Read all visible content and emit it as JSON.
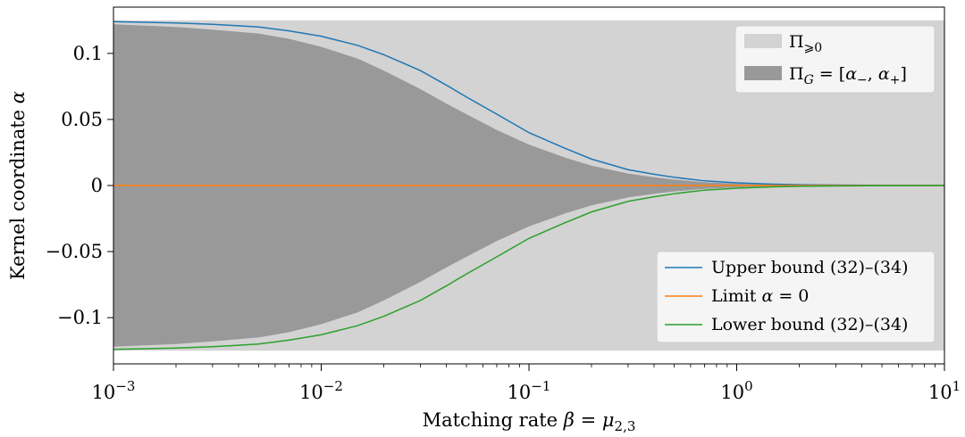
{
  "chart_data": {
    "type": "area",
    "xscale": "log",
    "xlim": [
      0.001,
      10
    ],
    "ylim": [
      -0.135,
      0.135
    ],
    "xlabel": "Matching rate β = μ2,3",
    "ylabel": "Kernel coordinate α",
    "x_ticks": [
      {
        "value": 0.001,
        "base": "10",
        "exp": "−3"
      },
      {
        "value": 0.01,
        "base": "10",
        "exp": "−2"
      },
      {
        "value": 0.1,
        "base": "10",
        "exp": "−1"
      },
      {
        "value": 1,
        "base": "10",
        "exp": "0"
      },
      {
        "value": 10,
        "base": "10",
        "exp": "1"
      }
    ],
    "y_ticks": [
      {
        "value": 0.1,
        "label": "0.1"
      },
      {
        "value": 0.05,
        "label": "0.05"
      },
      {
        "value": 0,
        "label": "0"
      },
      {
        "value": -0.05,
        "label": "−0.05"
      },
      {
        "value": -0.1,
        "label": "−0.1"
      }
    ],
    "x": [
      0.001,
      0.002,
      0.003,
      0.005,
      0.007,
      0.01,
      0.015,
      0.02,
      0.03,
      0.04,
      0.05,
      0.07,
      0.1,
      0.15,
      0.2,
      0.3,
      0.4,
      0.5,
      0.7,
      1,
      1.5,
      2,
      3,
      5,
      10
    ],
    "bands": [
      {
        "name": "Π≥0",
        "color": "#d3d3d3",
        "lower": -0.125,
        "upper": 0.125
      },
      {
        "name": "ΠG = [α−, α+]",
        "color": "#999999",
        "upper": [
          0.122,
          0.12,
          0.118,
          0.115,
          0.111,
          0.105,
          0.096,
          0.087,
          0.073,
          0.062,
          0.054,
          0.042,
          0.031,
          0.021,
          0.015,
          0.009,
          0.0062,
          0.0045,
          0.0025,
          0.0014,
          0.0007,
          0.0004,
          0.0002,
          0.0001,
          0.0
        ],
        "lower": [
          -0.122,
          -0.12,
          -0.118,
          -0.115,
          -0.111,
          -0.105,
          -0.096,
          -0.087,
          -0.073,
          -0.062,
          -0.054,
          -0.042,
          -0.031,
          -0.021,
          -0.015,
          -0.009,
          -0.0062,
          -0.0045,
          -0.0025,
          -0.0014,
          -0.0007,
          -0.0004,
          -0.0002,
          -0.0001,
          0.0
        ]
      }
    ],
    "series": [
      {
        "name": "Upper bound (32)–(34)",
        "color": "#1f77b4",
        "values": [
          0.124,
          0.123,
          0.122,
          0.12,
          0.117,
          0.113,
          0.106,
          0.099,
          0.087,
          0.076,
          0.067,
          0.054,
          0.04,
          0.028,
          0.02,
          0.012,
          0.0085,
          0.0062,
          0.0035,
          0.002,
          0.001,
          0.0006,
          0.0003,
          0.0001,
          0.0
        ]
      },
      {
        "name": "Limit α = 0",
        "color": "#ff7f0e",
        "values": [
          0,
          0,
          0,
          0,
          0,
          0,
          0,
          0,
          0,
          0,
          0,
          0,
          0,
          0,
          0,
          0,
          0,
          0,
          0,
          0,
          0,
          0,
          0,
          0,
          0
        ]
      },
      {
        "name": "Lower bound (32)–(34)",
        "color": "#2ca02c",
        "values": [
          -0.124,
          -0.123,
          -0.122,
          -0.12,
          -0.117,
          -0.113,
          -0.106,
          -0.099,
          -0.087,
          -0.076,
          -0.067,
          -0.054,
          -0.04,
          -0.028,
          -0.02,
          -0.012,
          -0.0085,
          -0.0062,
          -0.0035,
          -0.002,
          -0.001,
          -0.0006,
          -0.0003,
          -0.0001,
          0.0
        ]
      }
    ],
    "legends": [
      {
        "placement": "top-right",
        "entries": [
          "Π≥0",
          "ΠG = [α−, α+]"
        ]
      },
      {
        "placement": "lower-right",
        "entries": [
          "Upper bound (32)–(34)",
          "Limit α = 0",
          "Lower bound (32)–(34)"
        ]
      }
    ],
    "grid": false
  }
}
